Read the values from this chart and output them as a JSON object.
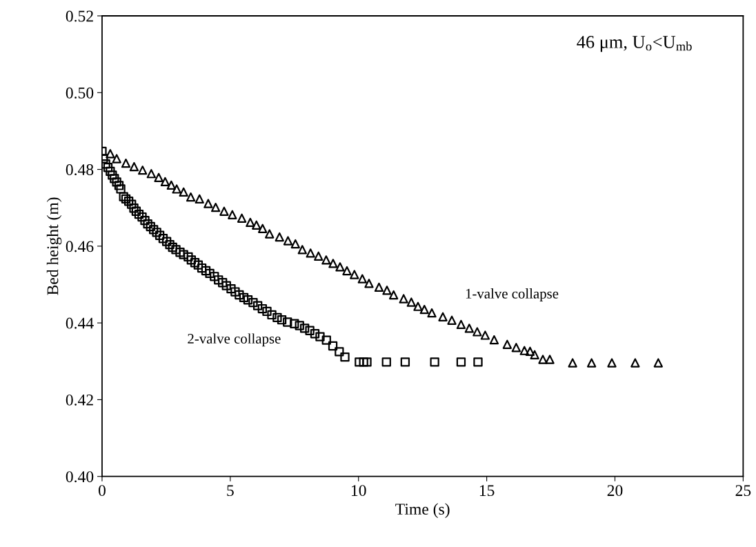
{
  "chart_data": {
    "type": "scatter",
    "xlabel": "Time (s)",
    "ylabel": "Bed height (m)",
    "xlim": [
      0,
      25
    ],
    "xticks": [
      0,
      5,
      10,
      15,
      20,
      25
    ],
    "ylim": [
      0.4,
      0.52
    ],
    "yticks": [
      {
        "value": 0.4,
        "label": "0.40"
      },
      {
        "value": 0.42,
        "label": "0.42"
      },
      {
        "value": 0.44,
        "label": "0.44"
      },
      {
        "value": 0.46,
        "label": "0.46"
      },
      {
        "value": 0.48,
        "label": "0.48"
      },
      {
        "value": 0.5,
        "label": "0.50"
      },
      {
        "value": 0.52,
        "label": "0.52"
      }
    ],
    "grid": false,
    "legend": false,
    "annotations": [
      "46 μm, U$_{o}$<U$_{mb}$"
    ],
    "series": [
      {
        "name": "1-valve collapse",
        "color": "#000000",
        "marker": "triangle",
        "x": [
          0.32,
          0.57,
          0.93,
          1.25,
          1.58,
          1.92,
          2.21,
          2.46,
          2.7,
          2.91,
          3.18,
          3.46,
          3.8,
          4.14,
          4.43,
          4.76,
          5.08,
          5.45,
          5.78,
          6.02,
          6.26,
          6.53,
          6.92,
          7.25,
          7.54,
          7.81,
          8.13,
          8.44,
          8.74,
          9.01,
          9.28,
          9.55,
          9.84,
          10.15,
          10.41,
          10.8,
          11.11,
          11.37,
          11.76,
          12.06,
          12.32,
          12.57,
          12.86,
          13.29,
          13.64,
          14.0,
          14.32,
          14.63,
          14.94,
          15.29,
          15.8,
          16.15,
          16.47,
          16.69,
          16.87,
          17.19,
          17.46,
          18.35,
          19.09,
          19.88,
          20.79,
          21.69
        ],
        "values": [
          0.4841,
          0.4828,
          0.4816,
          0.4807,
          0.4798,
          0.4789,
          0.4779,
          0.4768,
          0.4759,
          0.4749,
          0.4741,
          0.4728,
          0.4723,
          0.4711,
          0.4701,
          0.4691,
          0.4682,
          0.4673,
          0.4662,
          0.4655,
          0.4646,
          0.4632,
          0.4624,
          0.4614,
          0.4606,
          0.4591,
          0.4582,
          0.4574,
          0.4564,
          0.4555,
          0.4546,
          0.4536,
          0.4526,
          0.4515,
          0.4503,
          0.4493,
          0.4485,
          0.4473,
          0.4463,
          0.4454,
          0.4443,
          0.4435,
          0.4426,
          0.4416,
          0.4407,
          0.4396,
          0.4386,
          0.4377,
          0.4368,
          0.4356,
          0.4344,
          0.4336,
          0.4328,
          0.4326,
          0.4317,
          0.4305,
          0.4305,
          0.4296,
          0.4296,
          0.4296,
          0.4296,
          0.4296
        ]
      },
      {
        "name": "2-valve collapse",
        "color": "#000000",
        "marker": "square",
        "x": [
          0,
          0.05,
          0.14,
          0.23,
          0.32,
          0.4,
          0.48,
          0.57,
          0.66,
          0.73,
          0.84,
          0.93,
          1.04,
          1.15,
          1.24,
          1.33,
          1.44,
          1.56,
          1.67,
          1.78,
          1.89,
          2.01,
          2.13,
          2.25,
          2.38,
          2.52,
          2.64,
          2.75,
          2.88,
          3.04,
          3.18,
          3.36,
          3.48,
          3.62,
          3.75,
          3.89,
          4.05,
          4.2,
          4.38,
          4.54,
          4.7,
          4.85,
          5.03,
          5.19,
          5.35,
          5.53,
          5.69,
          5.89,
          6.07,
          6.25,
          6.43,
          6.62,
          6.83,
          7.01,
          7.23,
          7.5,
          7.7,
          7.9,
          8.1,
          8.3,
          8.5,
          8.75,
          9.0,
          9.25,
          9.47,
          10.03,
          10.2,
          10.33,
          11.09,
          11.82,
          12.97,
          14.0,
          14.66
        ],
        "values": [
          0.4847,
          0.4828,
          0.4814,
          0.4805,
          0.4795,
          0.4785,
          0.4776,
          0.4767,
          0.4758,
          0.4749,
          0.4729,
          0.4723,
          0.4717,
          0.4709,
          0.4699,
          0.4691,
          0.4683,
          0.4676,
          0.4667,
          0.4658,
          0.4651,
          0.4643,
          0.4636,
          0.4628,
          0.462,
          0.4612,
          0.4604,
          0.4597,
          0.4591,
          0.4584,
          0.4578,
          0.4572,
          0.4564,
          0.4557,
          0.4551,
          0.4543,
          0.4536,
          0.4529,
          0.4521,
          0.4512,
          0.4505,
          0.4497,
          0.4489,
          0.4481,
          0.4473,
          0.4466,
          0.446,
          0.4453,
          0.4445,
          0.4437,
          0.443,
          0.4421,
          0.4414,
          0.4408,
          0.4402,
          0.4398,
          0.4393,
          0.4386,
          0.438,
          0.4372,
          0.4364,
          0.4355,
          0.434,
          0.4325,
          0.4311,
          0.4298,
          0.4298,
          0.4298,
          0.4298,
          0.4298,
          0.4298,
          0.4298,
          0.4298
        ]
      }
    ]
  }
}
